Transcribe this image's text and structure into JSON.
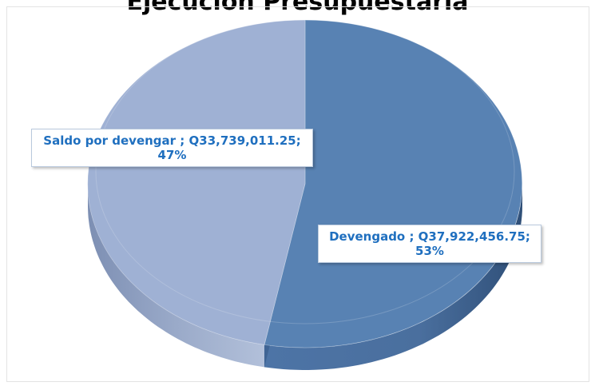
{
  "chart_data": {
    "type": "pie",
    "title": "Ejecución Presupuestaria",
    "slices": [
      {
        "name": "Devengado",
        "value": "Q37,922,456.75",
        "percent": "53%",
        "fraction": 0.53,
        "color": "#5882b3"
      },
      {
        "name": "Saldo por devengar",
        "value": "Q33,739,011.25",
        "percent": "47%",
        "fraction": 0.47,
        "color": "#9fb1d4"
      }
    ],
    "legend": "none",
    "style": "3d"
  }
}
